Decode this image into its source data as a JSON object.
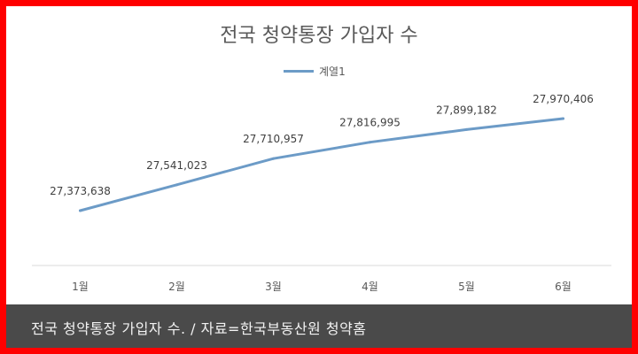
{
  "chart_data": {
    "type": "line",
    "title": "전국 청약통장 가입자 수",
    "categories": [
      "1월",
      "2월",
      "3월",
      "4월",
      "5월",
      "6월"
    ],
    "series": [
      {
        "name": "계열1",
        "values": [
          27373638,
          27541023,
          27710957,
          27816995,
          27899182,
          27970406
        ],
        "labels": [
          "27,373,638",
          "27,541,023",
          "27,710,957",
          "27,816,995",
          "27,899,182",
          "27,970,406"
        ],
        "color": "#6c9bc7"
      }
    ],
    "legend_position": "top-center",
    "grid": false
  },
  "caption": "전국 청약통장 가입자 수. / 자료=한국부동산원 청약홈",
  "colors": {
    "frame": "#ff0000",
    "caption_bg": "#4a4a4a",
    "caption_text": "#f2f2f2"
  }
}
